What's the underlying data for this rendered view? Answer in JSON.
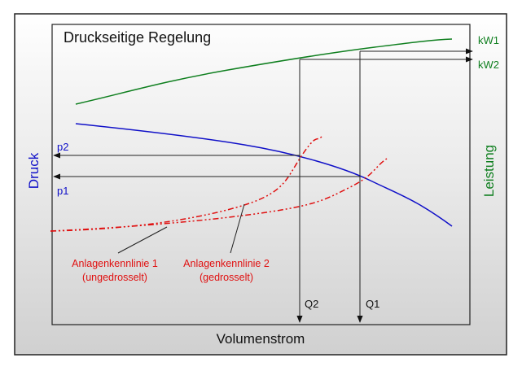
{
  "title": "Druckseitige Regelung",
  "axes": {
    "x_label": "Volumenstrom",
    "y_left_label": "Druck",
    "y_right_label": "Leistung"
  },
  "markers": {
    "p1": "p1",
    "p2": "p2",
    "q1": "Q1",
    "q2": "Q2",
    "kw1": "kW1",
    "kw2": "kW2"
  },
  "annotations": {
    "curve1_line1": "Anlagenkennlinie 1",
    "curve1_line2": "(ungedrosselt)",
    "curve2_line1": "Anlagenkennlinie 2",
    "curve2_line2": "(gedrosselt)"
  },
  "colors": {
    "pump_curve": "#1010c8",
    "power_curve": "#0f7f1f",
    "system_curves": "#e01010",
    "axis_text": "#111111",
    "frame": "#222222"
  }
}
